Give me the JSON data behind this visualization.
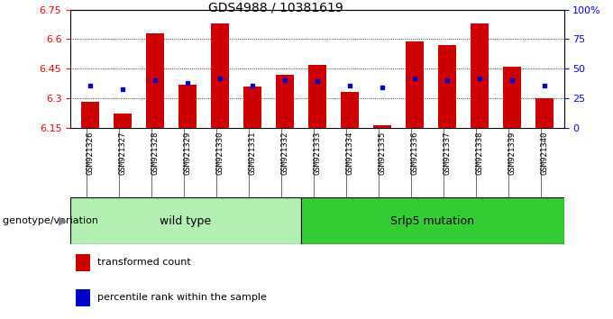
{
  "title": "GDS4988 / 10381619",
  "samples": [
    "GSM921326",
    "GSM921327",
    "GSM921328",
    "GSM921329",
    "GSM921330",
    "GSM921331",
    "GSM921332",
    "GSM921333",
    "GSM921334",
    "GSM921335",
    "GSM921336",
    "GSM921337",
    "GSM921338",
    "GSM921339",
    "GSM921340"
  ],
  "red_values": [
    6.28,
    6.22,
    6.63,
    6.37,
    6.68,
    6.36,
    6.42,
    6.47,
    6.33,
    6.16,
    6.59,
    6.57,
    6.68,
    6.46,
    6.3
  ],
  "blue_values": [
    6.365,
    6.345,
    6.39,
    6.375,
    6.4,
    6.365,
    6.39,
    6.385,
    6.365,
    6.355,
    6.4,
    6.39,
    6.4,
    6.39,
    6.365
  ],
  "ymin": 6.15,
  "ymax": 6.75,
  "yticks": [
    6.15,
    6.3,
    6.45,
    6.6,
    6.75
  ],
  "ytick_labels": [
    "6.15",
    "6.3",
    "6.45",
    "6.6",
    "6.75"
  ],
  "right_yticks": [
    0,
    25,
    50,
    75,
    100
  ],
  "right_ytick_labels": [
    "0",
    "25",
    "50",
    "75",
    "100%"
  ],
  "grid_lines": [
    6.3,
    6.45,
    6.6
  ],
  "group1_label": "wild type",
  "group2_label": "Srlp5 mutation",
  "group1_count": 7,
  "group2_count": 8,
  "bar_color": "#cc0000",
  "dot_color": "#0000cc",
  "bar_width": 0.55,
  "legend_red": "transformed count",
  "legend_blue": "percentile rank within the sample",
  "xlabel_genotype": "genotype/variation",
  "group1_bg": "#b2f0b2",
  "group2_bg": "#33cc33",
  "xtick_bg": "#c8c8c8",
  "title_fontsize": 10,
  "ytick_fontsize": 8,
  "xtick_fontsize": 6.5,
  "legend_fontsize": 8,
  "group_fontsize": 9,
  "genotype_fontsize": 8
}
